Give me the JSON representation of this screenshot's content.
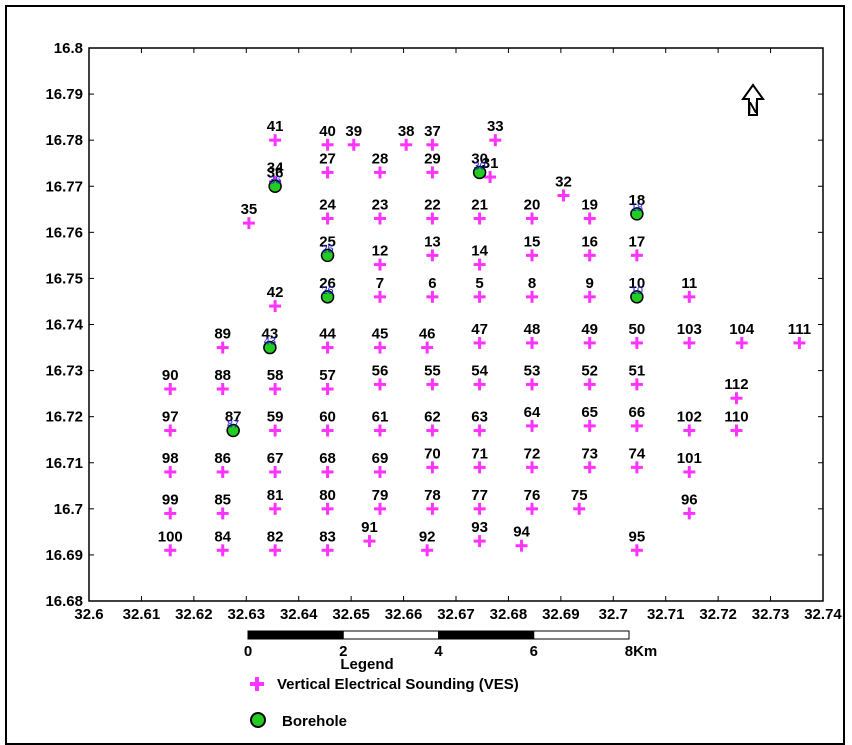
{
  "map": {
    "x_ticks": [
      "32.6",
      "32.61",
      "32.62",
      "32.63",
      "32.64",
      "32.65",
      "32.66",
      "32.67",
      "32.68",
      "32.69",
      "32.7",
      "32.71",
      "32.72",
      "32.73",
      "32.74"
    ],
    "y_ticks": [
      "16.8",
      "16.79",
      "16.78",
      "16.77",
      "16.76",
      "16.75",
      "16.74",
      "16.73",
      "16.72",
      "16.71",
      "16.7",
      "16.69",
      "16.68"
    ],
    "x_range": [
      32.6,
      32.74
    ],
    "y_range": [
      16.68,
      16.8
    ],
    "north_arrow": "N",
    "vertical_electrical_sounding_color": "#ff33ff",
    "borehole_color": "#22cc22"
  },
  "scale_bar": {
    "labels": [
      "0",
      "2",
      "4",
      "6",
      "8Km"
    ],
    "unit": "Km"
  },
  "legend": {
    "title": "Legend",
    "items": [
      {
        "label": "Vertical Electrical Sounding (VES)",
        "icon": "plus-icon",
        "color": "#ff33ff"
      },
      {
        "label": "Borehole",
        "icon": "circle-icon",
        "color": "#22cc22"
      }
    ]
  },
  "chart_data": {
    "type": "scatter",
    "xlim": [
      32.6,
      32.74
    ],
    "ylim": [
      16.68,
      16.8
    ],
    "ves_points": [
      {
        "id": "41",
        "x": 32.6355,
        "y": 16.78
      },
      {
        "id": "40",
        "x": 32.6455,
        "y": 16.779
      },
      {
        "id": "39",
        "x": 32.6505,
        "y": 16.779
      },
      {
        "id": "38",
        "x": 32.6605,
        "y": 16.779
      },
      {
        "id": "37",
        "x": 32.6655,
        "y": 16.779
      },
      {
        "id": "33",
        "x": 32.6775,
        "y": 16.78
      },
      {
        "id": "34",
        "x": 32.6355,
        "y": 16.771
      },
      {
        "id": "27",
        "x": 32.6455,
        "y": 16.773
      },
      {
        "id": "28",
        "x": 32.6555,
        "y": 16.773
      },
      {
        "id": "29",
        "x": 32.6655,
        "y": 16.773
      },
      {
        "id": "31",
        "x": 32.6765,
        "y": 16.772
      },
      {
        "id": "32",
        "x": 32.6905,
        "y": 16.768
      },
      {
        "id": "35",
        "x": 32.6305,
        "y": 16.762
      },
      {
        "id": "24",
        "x": 32.6455,
        "y": 16.763
      },
      {
        "id": "23",
        "x": 32.6555,
        "y": 16.763
      },
      {
        "id": "22",
        "x": 32.6655,
        "y": 16.763
      },
      {
        "id": "21",
        "x": 32.6745,
        "y": 16.763
      },
      {
        "id": "20",
        "x": 32.6845,
        "y": 16.763
      },
      {
        "id": "19",
        "x": 32.6955,
        "y": 16.763
      },
      {
        "id": "12",
        "x": 32.6555,
        "y": 16.753
      },
      {
        "id": "13",
        "x": 32.6655,
        "y": 16.755
      },
      {
        "id": "14",
        "x": 32.6745,
        "y": 16.753
      },
      {
        "id": "15",
        "x": 32.6845,
        "y": 16.755
      },
      {
        "id": "16",
        "x": 32.6955,
        "y": 16.755
      },
      {
        "id": "17",
        "x": 32.7045,
        "y": 16.755
      },
      {
        "id": "7",
        "x": 32.6555,
        "y": 16.746
      },
      {
        "id": "6",
        "x": 32.6655,
        "y": 16.746
      },
      {
        "id": "5",
        "x": 32.6745,
        "y": 16.746
      },
      {
        "id": "8",
        "x": 32.6845,
        "y": 16.746
      },
      {
        "id": "9",
        "x": 32.6955,
        "y": 16.746
      },
      {
        "id": "11",
        "x": 32.7145,
        "y": 16.746
      },
      {
        "id": "42",
        "x": 32.6355,
        "y": 16.744
      },
      {
        "id": "89",
        "x": 32.6255,
        "y": 16.735
      },
      {
        "id": "44",
        "x": 32.6455,
        "y": 16.735
      },
      {
        "id": "45",
        "x": 32.6555,
        "y": 16.735
      },
      {
        "id": "46",
        "x": 32.6645,
        "y": 16.735
      },
      {
        "id": "47",
        "x": 32.6745,
        "y": 16.736
      },
      {
        "id": "48",
        "x": 32.6845,
        "y": 16.736
      },
      {
        "id": "49",
        "x": 32.6955,
        "y": 16.736
      },
      {
        "id": "50",
        "x": 32.7045,
        "y": 16.736
      },
      {
        "id": "103",
        "x": 32.7145,
        "y": 16.736
      },
      {
        "id": "104",
        "x": 32.7245,
        "y": 16.736
      },
      {
        "id": "111",
        "x": 32.7355,
        "y": 16.736
      },
      {
        "id": "90",
        "x": 32.6155,
        "y": 16.726
      },
      {
        "id": "88",
        "x": 32.6255,
        "y": 16.726
      },
      {
        "id": "58",
        "x": 32.6355,
        "y": 16.726
      },
      {
        "id": "57",
        "x": 32.6455,
        "y": 16.726
      },
      {
        "id": "56",
        "x": 32.6555,
        "y": 16.727
      },
      {
        "id": "55",
        "x": 32.6655,
        "y": 16.727
      },
      {
        "id": "54",
        "x": 32.6745,
        "y": 16.727
      },
      {
        "id": "53",
        "x": 32.6845,
        "y": 16.727
      },
      {
        "id": "52",
        "x": 32.6955,
        "y": 16.727
      },
      {
        "id": "51",
        "x": 32.7045,
        "y": 16.727
      },
      {
        "id": "112",
        "x": 32.7235,
        "y": 16.724
      },
      {
        "id": "97",
        "x": 32.6155,
        "y": 16.717
      },
      {
        "id": "59",
        "x": 32.6355,
        "y": 16.717
      },
      {
        "id": "60",
        "x": 32.6455,
        "y": 16.717
      },
      {
        "id": "61",
        "x": 32.6555,
        "y": 16.717
      },
      {
        "id": "62",
        "x": 32.6655,
        "y": 16.717
      },
      {
        "id": "63",
        "x": 32.6745,
        "y": 16.717
      },
      {
        "id": "64",
        "x": 32.6845,
        "y": 16.718
      },
      {
        "id": "65",
        "x": 32.6955,
        "y": 16.718
      },
      {
        "id": "66",
        "x": 32.7045,
        "y": 16.718
      },
      {
        "id": "102",
        "x": 32.7145,
        "y": 16.717
      },
      {
        "id": "110",
        "x": 32.7235,
        "y": 16.717
      },
      {
        "id": "98",
        "x": 32.6155,
        "y": 16.708
      },
      {
        "id": "86",
        "x": 32.6255,
        "y": 16.708
      },
      {
        "id": "67",
        "x": 32.6355,
        "y": 16.708
      },
      {
        "id": "68",
        "x": 32.6455,
        "y": 16.708
      },
      {
        "id": "69",
        "x": 32.6555,
        "y": 16.708
      },
      {
        "id": "70",
        "x": 32.6655,
        "y": 16.709
      },
      {
        "id": "71",
        "x": 32.6745,
        "y": 16.709
      },
      {
        "id": "72",
        "x": 32.6845,
        "y": 16.709
      },
      {
        "id": "73",
        "x": 32.6955,
        "y": 16.709
      },
      {
        "id": "74",
        "x": 32.7045,
        "y": 16.709
      },
      {
        "id": "101",
        "x": 32.7145,
        "y": 16.708
      },
      {
        "id": "99",
        "x": 32.6155,
        "y": 16.699
      },
      {
        "id": "85",
        "x": 32.6255,
        "y": 16.699
      },
      {
        "id": "81",
        "x": 32.6355,
        "y": 16.7
      },
      {
        "id": "80",
        "x": 32.6455,
        "y": 16.7
      },
      {
        "id": "79",
        "x": 32.6555,
        "y": 16.7
      },
      {
        "id": "78",
        "x": 32.6655,
        "y": 16.7
      },
      {
        "id": "77",
        "x": 32.6745,
        "y": 16.7
      },
      {
        "id": "76",
        "x": 32.6845,
        "y": 16.7
      },
      {
        "id": "75",
        "x": 32.6935,
        "y": 16.7
      },
      {
        "id": "96",
        "x": 32.7145,
        "y": 16.699
      },
      {
        "id": "100",
        "x": 32.6155,
        "y": 16.691
      },
      {
        "id": "84",
        "x": 32.6255,
        "y": 16.691
      },
      {
        "id": "82",
        "x": 32.6355,
        "y": 16.691
      },
      {
        "id": "83",
        "x": 32.6455,
        "y": 16.691
      },
      {
        "id": "91",
        "x": 32.6535,
        "y": 16.693
      },
      {
        "id": "92",
        "x": 32.6645,
        "y": 16.691
      },
      {
        "id": "93",
        "x": 32.6745,
        "y": 16.693
      },
      {
        "id": "94",
        "x": 32.6825,
        "y": 16.692
      },
      {
        "id": "95",
        "x": 32.7045,
        "y": 16.691
      }
    ],
    "borehole_points": [
      {
        "id": "36",
        "x": 32.6355,
        "y": 16.77
      },
      {
        "id": "30",
        "x": 32.6745,
        "y": 16.773
      },
      {
        "id": "18",
        "x": 32.7045,
        "y": 16.764
      },
      {
        "id": "25",
        "x": 32.6455,
        "y": 16.755
      },
      {
        "id": "26",
        "x": 32.6455,
        "y": 16.746
      },
      {
        "id": "10",
        "x": 32.7045,
        "y": 16.746
      },
      {
        "id": "43",
        "x": 32.6345,
        "y": 16.735
      },
      {
        "id": "87",
        "x": 32.6275,
        "y": 16.717
      }
    ]
  }
}
